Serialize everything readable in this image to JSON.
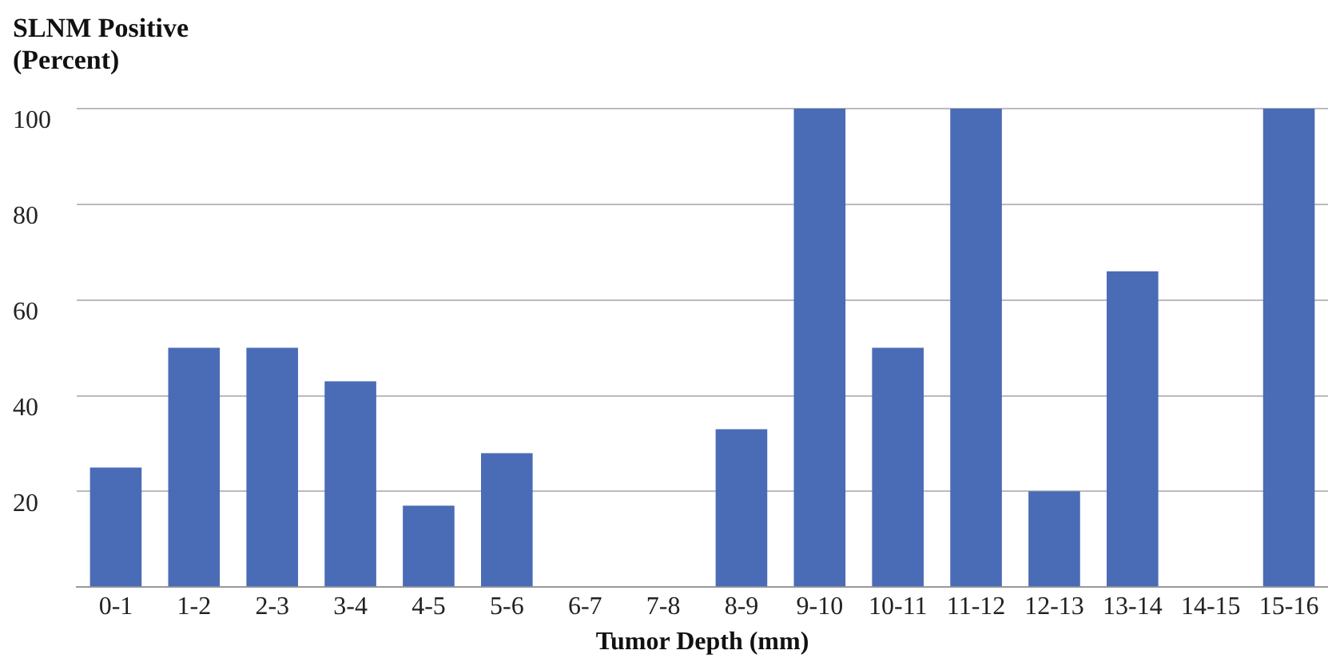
{
  "chart_data": {
    "type": "bar",
    "ylabel": "SLNM Positive (Percent)",
    "xlabel": "Tumor Depth (mm)",
    "categories": [
      "0-1",
      "1-2",
      "2-3",
      "3-4",
      "4-5",
      "5-6",
      "6-7",
      "7-8",
      "8-9",
      "9-10",
      "10-11",
      "11-12",
      "12-13",
      "13-14",
      "14-15",
      "15-16"
    ],
    "values": [
      25,
      50,
      50,
      43,
      17,
      28,
      0,
      0,
      33,
      100,
      50,
      100,
      20,
      66,
      0,
      100
    ],
    "color": "#4a6bb6",
    "ylim": [
      0,
      100
    ],
    "yticks": [
      {
        "value": 0,
        "label": null
      },
      20,
      40,
      60,
      80,
      100
    ],
    "grid": "y",
    "legend": false
  }
}
